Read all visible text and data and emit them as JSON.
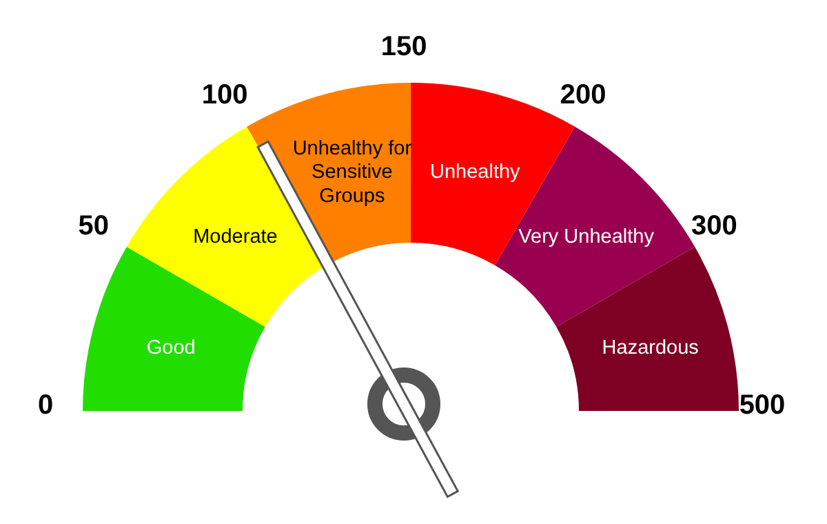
{
  "chart_data": {
    "type": "donut",
    "categories": [
      "Good",
      "Moderate",
      "Unhealthy for Sensitive Groups",
      "Unhealthy",
      "Very Unhealthy",
      "Hazardous"
    ],
    "values": [
      16.67,
      16.67,
      16.67,
      16.67,
      16.66,
      16.66
    ],
    "colors": [
      "#22dd00",
      "#ffff00",
      "#ff8000",
      "#ff0000",
      "#990050",
      "#7e0023"
    ],
    "needle": "Unhealthy for Sensitive Groups",
    "annotations": [
      "0",
      "50",
      "100",
      "150",
      "200",
      "300",
      "500"
    ]
  }
}
